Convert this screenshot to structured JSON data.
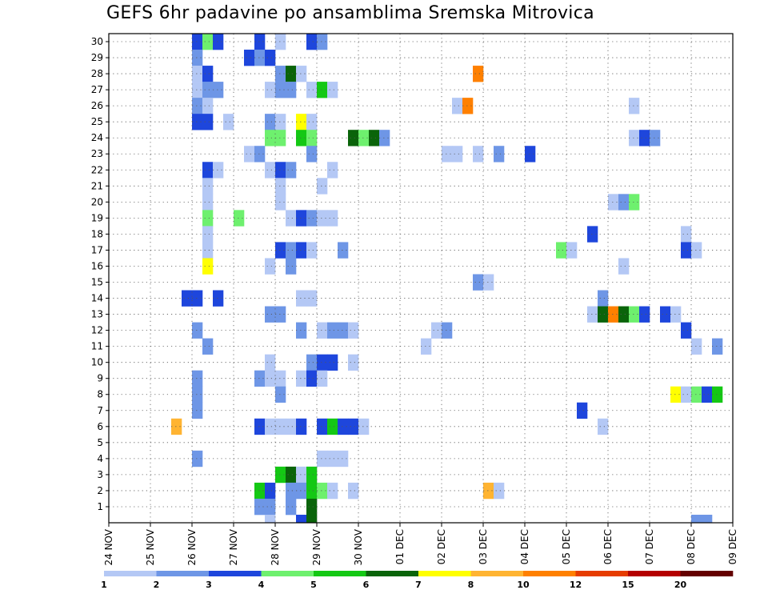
{
  "chart_data": {
    "type": "heatmap",
    "title": "GEFS 6hr padavine po ansamblima Sremska Mitrovica",
    "y_members": [
      1,
      2,
      3,
      4,
      5,
      6,
      7,
      8,
      9,
      10,
      11,
      12,
      13,
      14,
      15,
      16,
      17,
      18,
      19,
      20,
      21,
      22,
      23,
      24,
      25,
      26,
      27,
      28,
      29,
      30
    ],
    "x_dates": [
      "24 NOV",
      "25 NOV",
      "26 NOV",
      "27 NOV",
      "28 NOV",
      "29 NOV",
      "30 NOV",
      "01 DEC",
      "02 DEC",
      "03 DEC",
      "04 DEC",
      "05 DEC",
      "06 DEC",
      "07 DEC",
      "08 DEC",
      "09 DEC"
    ],
    "time_step_hours": 6,
    "legend": {
      "bins": [
        1,
        2,
        3,
        4,
        5,
        6,
        7,
        8,
        10,
        12,
        15,
        20
      ],
      "colors": [
        "#b4c8f5",
        "#6e96e6",
        "#1e46dc",
        "#6ef06e",
        "#14c814",
        "#0a640a",
        "#ffff00",
        "#ffb432",
        "#ff8000",
        "#e63c00",
        "#b40000",
        "#640000"
      ]
    },
    "cells": [
      [
        30,
        8,
        3
      ],
      [
        30,
        9,
        4
      ],
      [
        30,
        10,
        3
      ],
      [
        30,
        14,
        3
      ],
      [
        30,
        16,
        1
      ],
      [
        30,
        19,
        3
      ],
      [
        30,
        20,
        2
      ],
      [
        29,
        8,
        2
      ],
      [
        29,
        13,
        3
      ],
      [
        29,
        14,
        2
      ],
      [
        29,
        15,
        3
      ],
      [
        28,
        8,
        1
      ],
      [
        28,
        9,
        3
      ],
      [
        28,
        16,
        2
      ],
      [
        28,
        17,
        6
      ],
      [
        28,
        18,
        1
      ],
      [
        28,
        35,
        9
      ],
      [
        27,
        8,
        1
      ],
      [
        27,
        9,
        2
      ],
      [
        27,
        10,
        2
      ],
      [
        27,
        15,
        1
      ],
      [
        27,
        16,
        2
      ],
      [
        27,
        17,
        2
      ],
      [
        27,
        19,
        1
      ],
      [
        27,
        20,
        5
      ],
      [
        27,
        21,
        1
      ],
      [
        26,
        8,
        2
      ],
      [
        26,
        9,
        1
      ],
      [
        26,
        33,
        1
      ],
      [
        26,
        34,
        9
      ],
      [
        26,
        50,
        1
      ],
      [
        25,
        8,
        3
      ],
      [
        25,
        9,
        3
      ],
      [
        25,
        11,
        1
      ],
      [
        25,
        15,
        2
      ],
      [
        25,
        16,
        1
      ],
      [
        25,
        18,
        7
      ],
      [
        25,
        19,
        1
      ],
      [
        24,
        15,
        4
      ],
      [
        24,
        16,
        4
      ],
      [
        24,
        18,
        5
      ],
      [
        24,
        19,
        4
      ],
      [
        24,
        23,
        6
      ],
      [
        24,
        24,
        4
      ],
      [
        24,
        25,
        6
      ],
      [
        24,
        26,
        2
      ],
      [
        24,
        50,
        1
      ],
      [
        24,
        51,
        3
      ],
      [
        24,
        52,
        2
      ],
      [
        23,
        13,
        1
      ],
      [
        23,
        14,
        2
      ],
      [
        23,
        19,
        2
      ],
      [
        23,
        32,
        1
      ],
      [
        23,
        33,
        1
      ],
      [
        23,
        35,
        1
      ],
      [
        23,
        37,
        2
      ],
      [
        23,
        40,
        3
      ],
      [
        22,
        9,
        3
      ],
      [
        22,
        10,
        1
      ],
      [
        22,
        15,
        1
      ],
      [
        22,
        16,
        3
      ],
      [
        22,
        17,
        2
      ],
      [
        22,
        21,
        1
      ],
      [
        21,
        9,
        1
      ],
      [
        21,
        16,
        1
      ],
      [
        21,
        20,
        1
      ],
      [
        20,
        9,
        1
      ],
      [
        20,
        16,
        1
      ],
      [
        20,
        48,
        1
      ],
      [
        20,
        49,
        2
      ],
      [
        20,
        50,
        4
      ],
      [
        19,
        9,
        4
      ],
      [
        19,
        12,
        4
      ],
      [
        19,
        17,
        1
      ],
      [
        19,
        18,
        3
      ],
      [
        19,
        19,
        2
      ],
      [
        19,
        20,
        1
      ],
      [
        19,
        21,
        1
      ],
      [
        18,
        9,
        1
      ],
      [
        18,
        46,
        3
      ],
      [
        18,
        55,
        1
      ],
      [
        17,
        9,
        1
      ],
      [
        17,
        16,
        3
      ],
      [
        17,
        17,
        2
      ],
      [
        17,
        18,
        3
      ],
      [
        17,
        19,
        1
      ],
      [
        17,
        22,
        2
      ],
      [
        17,
        43,
        4
      ],
      [
        17,
        44,
        1
      ],
      [
        17,
        55,
        3
      ],
      [
        17,
        56,
        1
      ],
      [
        16,
        9,
        7
      ],
      [
        16,
        15,
        1
      ],
      [
        16,
        17,
        2
      ],
      [
        16,
        49,
        1
      ],
      [
        15,
        35,
        2
      ],
      [
        15,
        36,
        1
      ],
      [
        14,
        7,
        3
      ],
      [
        14,
        8,
        3
      ],
      [
        14,
        10,
        3
      ],
      [
        14,
        18,
        1
      ],
      [
        14,
        19,
        1
      ],
      [
        14,
        47,
        2
      ],
      [
        13,
        15,
        2
      ],
      [
        13,
        16,
        2
      ],
      [
        13,
        46,
        1
      ],
      [
        13,
        47,
        6
      ],
      [
        13,
        48,
        9
      ],
      [
        13,
        49,
        6
      ],
      [
        13,
        50,
        4
      ],
      [
        13,
        51,
        3
      ],
      [
        13,
        53,
        3
      ],
      [
        13,
        54,
        1
      ],
      [
        12,
        8,
        2
      ],
      [
        12,
        18,
        2
      ],
      [
        12,
        20,
        1
      ],
      [
        12,
        21,
        2
      ],
      [
        12,
        22,
        2
      ],
      [
        12,
        23,
        1
      ],
      [
        12,
        31,
        1
      ],
      [
        12,
        32,
        2
      ],
      [
        12,
        55,
        3
      ],
      [
        11,
        9,
        2
      ],
      [
        11,
        30,
        1
      ],
      [
        11,
        56,
        1
      ],
      [
        11,
        58,
        2
      ],
      [
        10,
        15,
        1
      ],
      [
        10,
        19,
        2
      ],
      [
        10,
        20,
        3
      ],
      [
        10,
        21,
        3
      ],
      [
        10,
        23,
        1
      ],
      [
        9,
        8,
        2
      ],
      [
        9,
        14,
        2
      ],
      [
        9,
        15,
        1
      ],
      [
        9,
        16,
        1
      ],
      [
        9,
        18,
        1
      ],
      [
        9,
        19,
        3
      ],
      [
        9,
        20,
        1
      ],
      [
        8,
        8,
        2
      ],
      [
        8,
        16,
        2
      ],
      [
        8,
        54,
        7
      ],
      [
        8,
        55,
        1
      ],
      [
        8,
        56,
        4
      ],
      [
        8,
        57,
        3
      ],
      [
        8,
        58,
        5
      ],
      [
        7,
        8,
        2
      ],
      [
        7,
        45,
        3
      ],
      [
        6,
        6,
        8
      ],
      [
        6,
        14,
        3
      ],
      [
        6,
        15,
        1
      ],
      [
        6,
        16,
        1
      ],
      [
        6,
        17,
        1
      ],
      [
        6,
        18,
        3
      ],
      [
        6,
        20,
        3
      ],
      [
        6,
        21,
        5
      ],
      [
        6,
        22,
        3
      ],
      [
        6,
        23,
        3
      ],
      [
        6,
        24,
        1
      ],
      [
        6,
        47,
        1
      ],
      [
        4,
        8,
        2
      ],
      [
        4,
        20,
        1
      ],
      [
        4,
        21,
        1
      ],
      [
        4,
        22,
        1
      ],
      [
        3,
        16,
        5
      ],
      [
        3,
        17,
        6
      ],
      [
        3,
        18,
        1
      ],
      [
        3,
        19,
        5
      ],
      [
        2,
        14,
        5
      ],
      [
        2,
        15,
        3
      ],
      [
        2,
        17,
        2
      ],
      [
        2,
        18,
        2
      ],
      [
        2,
        19,
        5
      ],
      [
        2,
        20,
        4
      ],
      [
        2,
        21,
        1
      ],
      [
        2,
        23,
        1
      ],
      [
        2,
        36,
        8
      ],
      [
        2,
        37,
        1
      ],
      [
        1,
        14,
        2
      ],
      [
        1,
        15,
        2
      ],
      [
        1,
        17,
        2
      ],
      [
        1,
        19,
        6
      ],
      [
        0,
        15,
        1
      ],
      [
        0,
        18,
        3
      ],
      [
        0,
        19,
        6
      ],
      [
        0,
        56,
        2
      ],
      [
        0,
        57,
        2
      ]
    ]
  }
}
